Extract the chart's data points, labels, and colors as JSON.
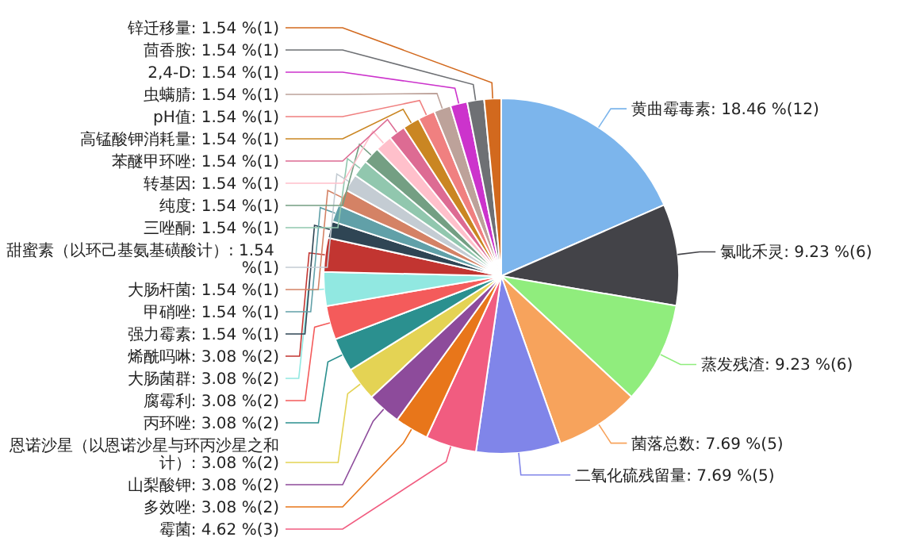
{
  "chart_data": {
    "type": "pie",
    "categories": [
      "黄曲霉毒素",
      "氯吡禾灵",
      "蒸发残渣",
      "菌落总数",
      "二氧化硫残留量",
      "霉菌",
      "多效唑",
      "山梨酸钾",
      "恩诺沙星（以恩诺沙星与环丙沙星之和计）",
      "丙环唑",
      "腐霉利",
      "大肠菌群",
      "烯酰吗啉",
      "强力霉素",
      "甲硝唑",
      "大肠杆菌",
      "甜蜜素（以环己基氨基磺酸计）",
      "三唑酮",
      "纯度",
      "转基因",
      "苯醚甲环唑",
      "高锰酸钾消耗量",
      "pH值",
      "虫螨腈",
      "2,4-D",
      "茴香胺",
      "锌迁移量"
    ],
    "values": [
      18.46,
      9.23,
      9.23,
      7.69,
      7.69,
      4.62,
      3.08,
      3.08,
      3.08,
      3.08,
      3.08,
      3.08,
      3.08,
      1.54,
      1.54,
      1.54,
      1.54,
      1.54,
      1.54,
      1.54,
      1.54,
      1.54,
      1.54,
      1.54,
      1.54,
      1.54,
      1.54
    ],
    "value_labels": [
      "18.46 %(12)",
      "9.23 %(6)",
      "9.23 %(6)",
      "7.69 %(5)",
      "7.69 %(5)",
      "4.62 %(3)",
      "3.08 %(2)",
      "3.08 %(2)",
      "3.08 %(2)",
      "3.08 %(2)",
      "3.08 %(2)",
      "3.08 %(2)",
      "3.08 %(2)",
      "1.54 %(1)",
      "1.54 %(1)",
      "1.54 %(1)",
      "1.54 %(1)",
      "1.54 %(1)",
      "1.54 %(1)",
      "1.54 %(1)",
      "1.54 %(1)",
      "1.54 %(1)",
      "1.54 %(1)",
      "1.54 %(1)",
      "1.54 %(1)",
      "1.54 %(1)",
      "1.54 %(1)"
    ],
    "colors": [
      "#7cb5ec",
      "#434348",
      "#90ed7d",
      "#f7a35c",
      "#8085e9",
      "#f15c80",
      "#e8761a",
      "#8d4b9b",
      "#e4d354",
      "#2b908f",
      "#f45b5b",
      "#91e8e1",
      "#c23531",
      "#2f4554",
      "#61a0a8",
      "#d48265",
      "#c4ccd3",
      "#91c7ae",
      "#749f83",
      "#ffc0cb",
      "#dd6b93",
      "#ca8622",
      "#f08080",
      "#bda29a",
      "#cc33cc",
      "#6e7074",
      "#d2691e"
    ]
  }
}
